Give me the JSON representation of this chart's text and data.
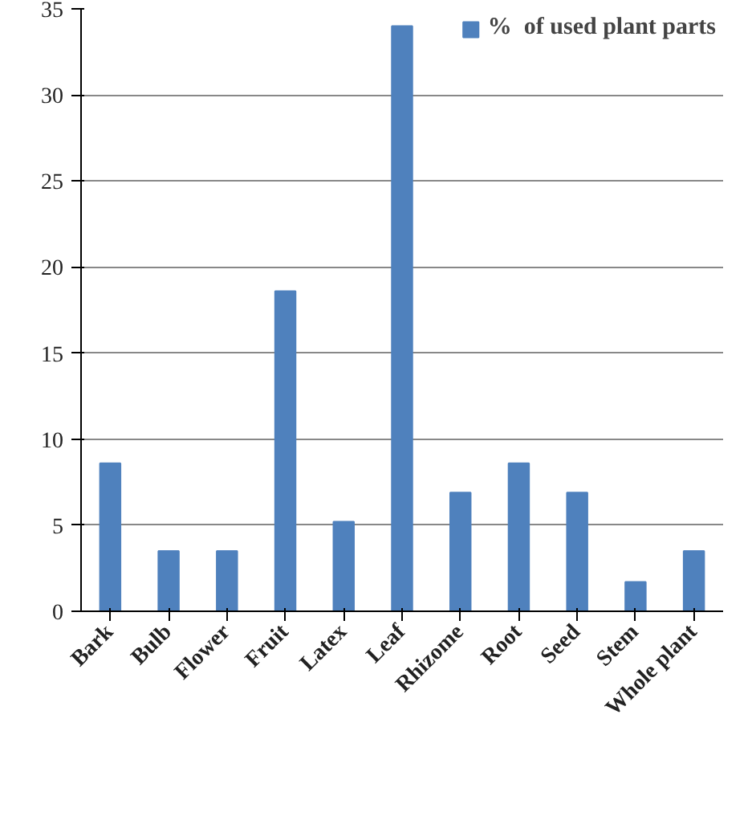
{
  "chart_data": {
    "type": "bar",
    "categories": [
      "Bark",
      "Bulb",
      "Flower",
      "Fruit",
      "Latex",
      "Leaf",
      "Rhizome",
      "Root",
      "Seed",
      "Stem",
      "Whole plant"
    ],
    "series": [
      {
        "name": "%  of used plant parts",
        "color": "#4f81bd",
        "values": [
          8.6,
          3.5,
          3.5,
          18.6,
          5.2,
          34,
          6.9,
          8.6,
          6.9,
          1.7,
          3.5
        ]
      }
    ],
    "ylim": [
      0,
      35
    ],
    "yticks": [
      0,
      5,
      10,
      15,
      20,
      25,
      30,
      35
    ],
    "grid": "y",
    "legend": "top right"
  }
}
